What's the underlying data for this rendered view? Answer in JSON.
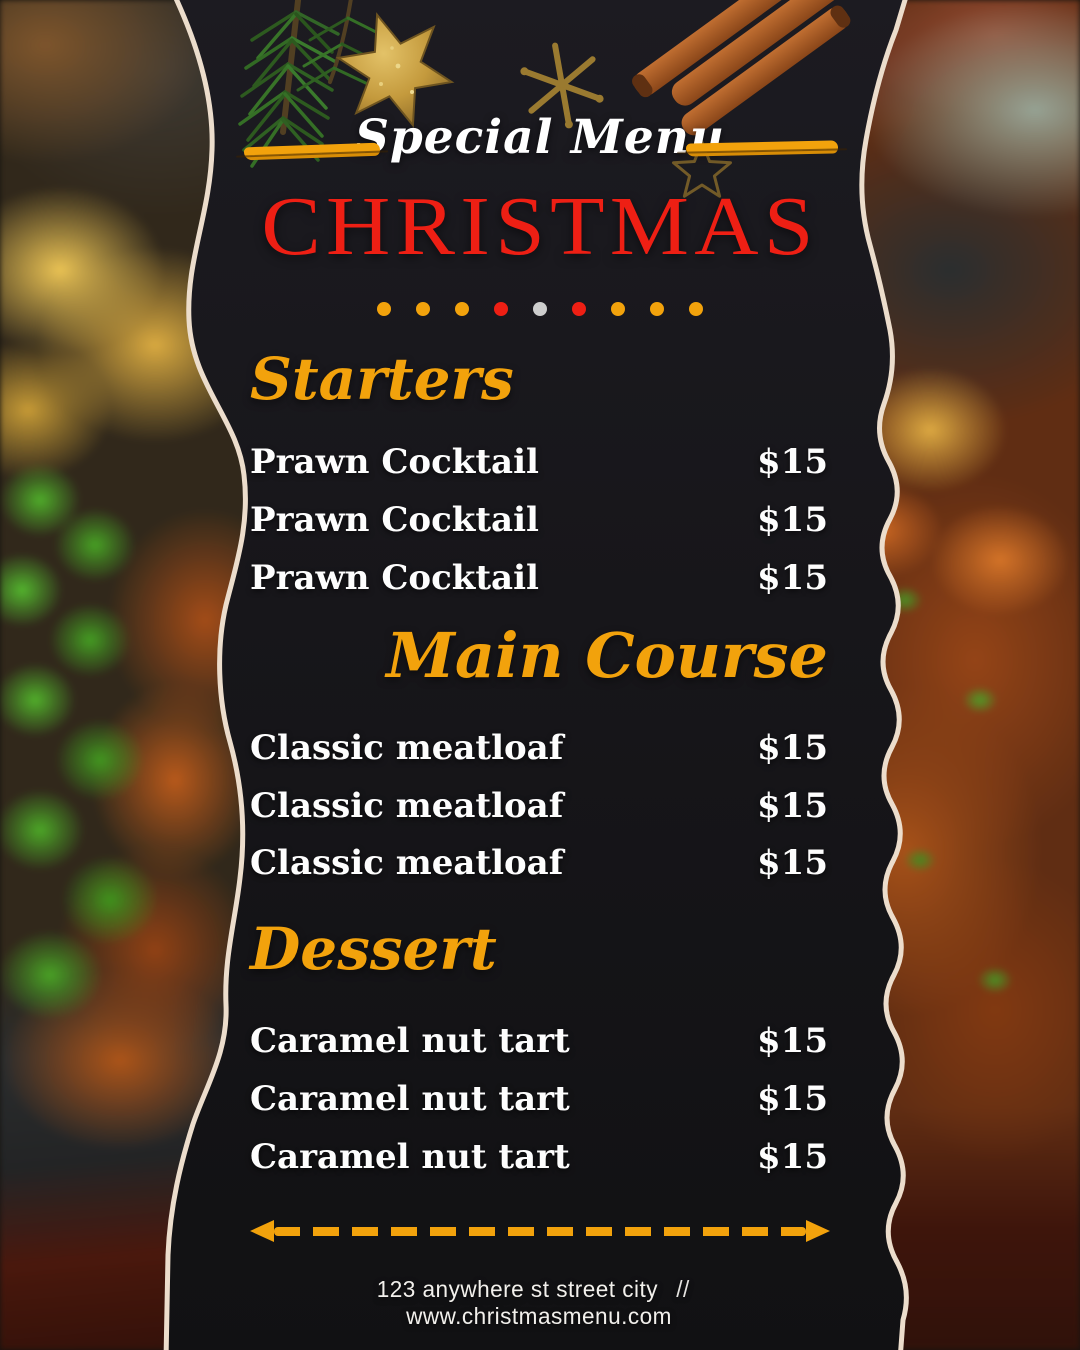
{
  "poster": {
    "eyebrow": "Special Menu",
    "title": "CHRISTMAS",
    "dots": [
      "orange",
      "orange",
      "orange",
      "red",
      "silver",
      "red",
      "orange",
      "orange",
      "orange"
    ]
  },
  "menu": {
    "sections": [
      {
        "title": "Starters",
        "items": [
          {
            "name": "Prawn Cocktail",
            "price": "$15"
          },
          {
            "name": "Prawn Cocktail",
            "price": "$15"
          },
          {
            "name": "Prawn Cocktail",
            "price": "$15"
          }
        ]
      },
      {
        "title": "Main Course",
        "items": [
          {
            "name": "Classic meatloaf",
            "price": "$15"
          },
          {
            "name": "Classic meatloaf",
            "price": "$15"
          },
          {
            "name": "Classic meatloaf",
            "price": "$15"
          }
        ]
      },
      {
        "title": "Dessert",
        "items": [
          {
            "name": "Caramel nut tart",
            "price": "$15"
          },
          {
            "name": "Caramel nut tart",
            "price": "$15"
          },
          {
            "name": "Caramel nut tart",
            "price": "$15"
          }
        ]
      }
    ]
  },
  "footer": {
    "address": "123 anywhere st street city",
    "separator": "//",
    "website": "www.christmasmenu.com"
  },
  "colors": {
    "accent_orange": "#F2A20C",
    "accent_red": "#EE1F14",
    "dot_silver": "#CDCDCD",
    "panel_dark": "#17161A",
    "edge_cream": "#ECDDCC",
    "text_white": "#FFFFFF"
  },
  "decorations": [
    "fir-branch",
    "glitter-star",
    "snowflake-cookie",
    "star-outline",
    "cinnamon-sticks",
    "dashed-arrow"
  ]
}
